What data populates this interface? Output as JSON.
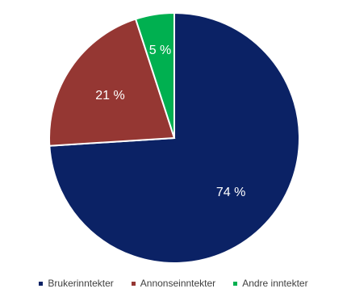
{
  "chart_data": {
    "type": "pie",
    "title": "",
    "legend_position": "bottom",
    "slices": [
      {
        "label": "Brukerinntekter",
        "value": 74,
        "display": "74 %",
        "color": "#0b2265"
      },
      {
        "label": "Annonseinntekter",
        "value": 21,
        "display": "21 %",
        "color": "#953733"
      },
      {
        "label": "Andre inntekter",
        "value": 5,
        "display": "5 %",
        "color": "#00b050"
      }
    ]
  }
}
